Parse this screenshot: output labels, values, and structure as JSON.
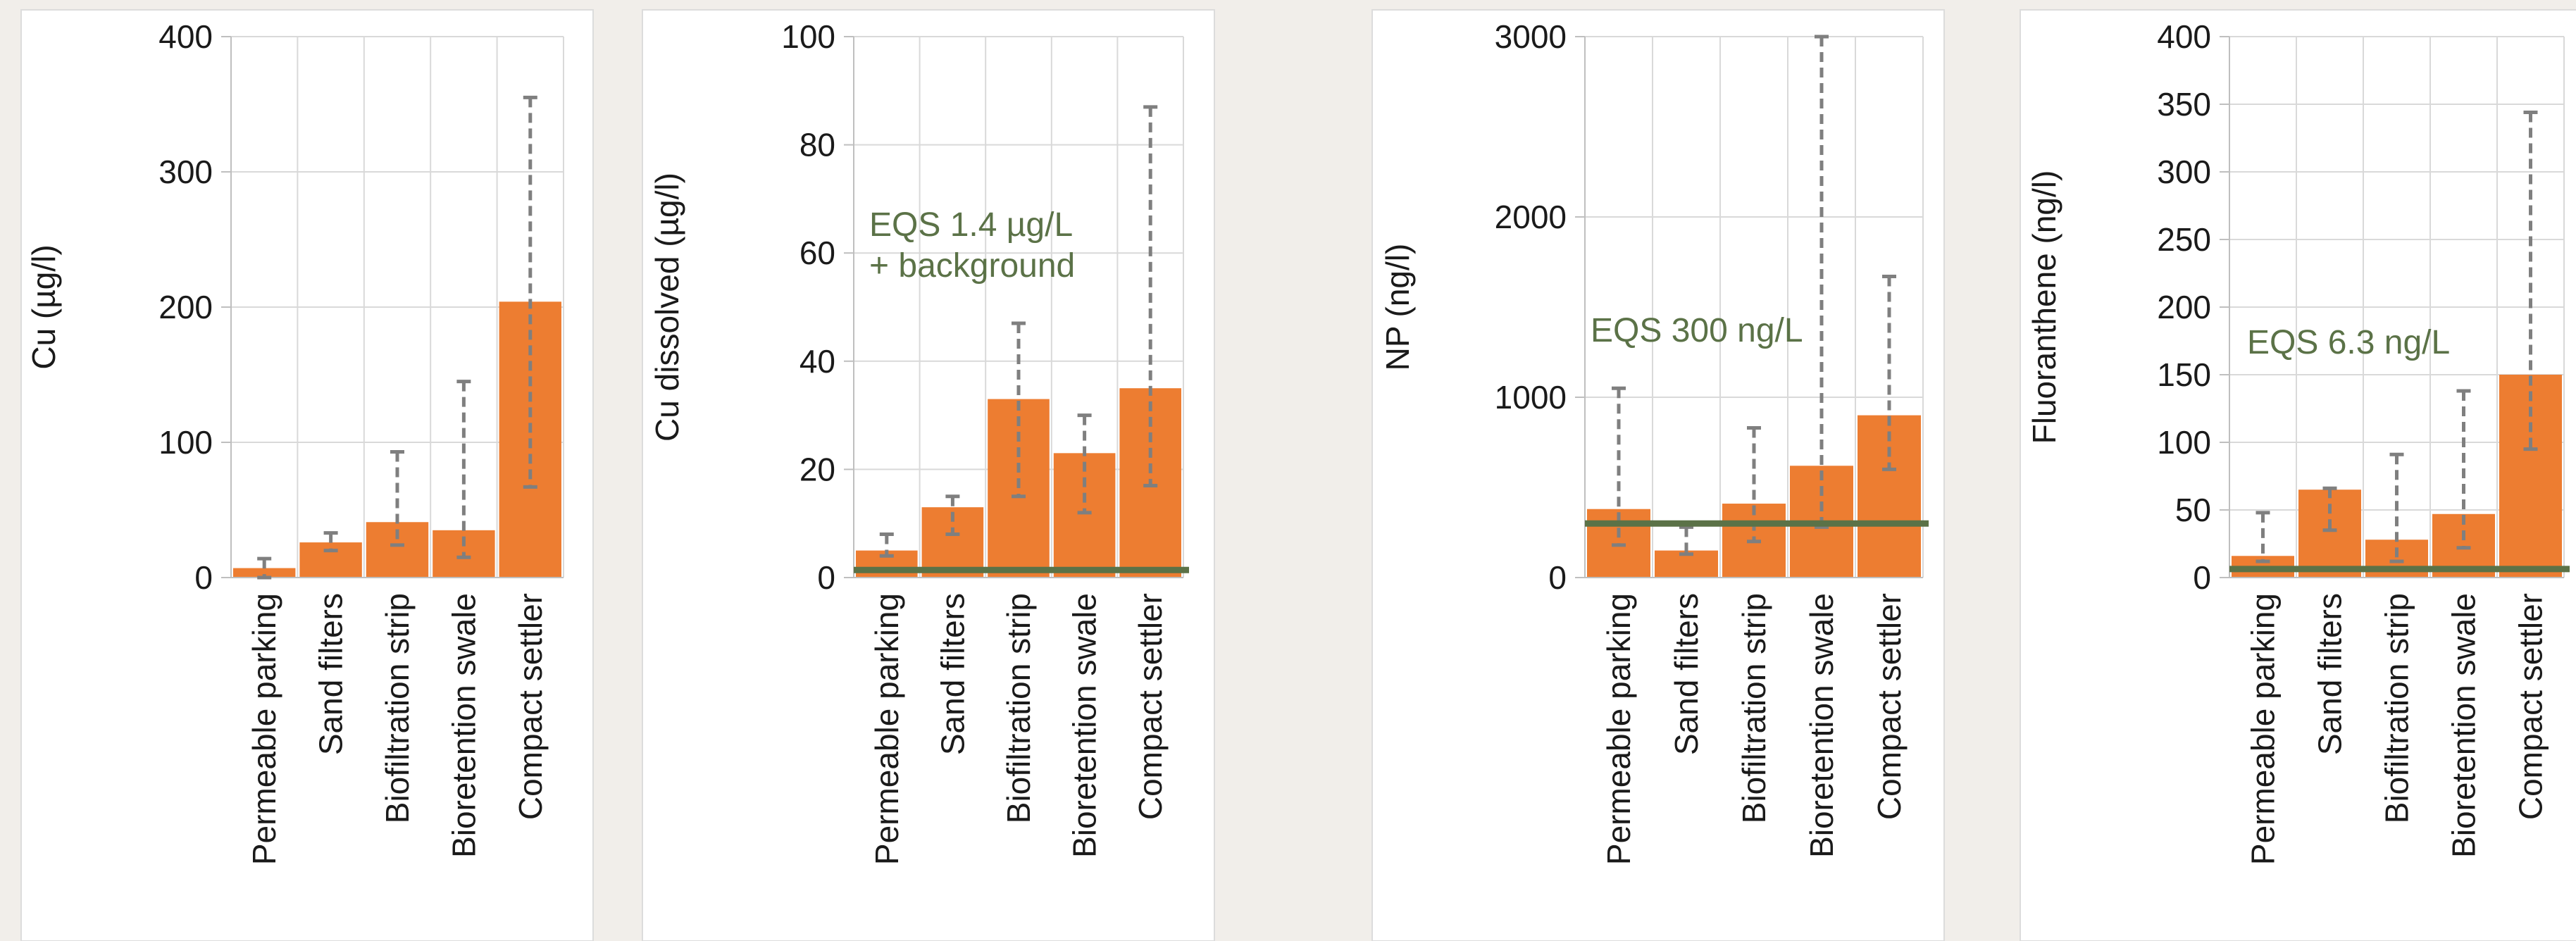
{
  "colors": {
    "bar": "#ed7d31",
    "eqs_line": "#5b7247",
    "error_bar": "#7f7f7f",
    "grid": "#d9d9d9",
    "panel_bg": "#ffffff",
    "page_bg": "#f1eeea"
  },
  "chart_data": [
    {
      "type": "bar",
      "categories": [
        "Permeable parking",
        "Sand filters",
        "Biofiltration strip",
        "Bioretention swale",
        "Compact settler"
      ],
      "values": [
        7,
        26,
        41,
        35,
        204
      ],
      "error_low": [
        0,
        20,
        24,
        15,
        67
      ],
      "error_high": [
        14,
        33,
        93,
        145,
        355
      ],
      "ylabel": "Cu (µg/l)",
      "ylim": [
        0,
        400
      ],
      "yticks": [
        0,
        100,
        200,
        300,
        400
      ],
      "grid": true
    },
    {
      "type": "bar",
      "categories": [
        "Permeable parking",
        "Sand filters",
        "Biofiltration strip",
        "Bioretention swale",
        "Compact settler"
      ],
      "values": [
        5,
        13,
        33,
        23,
        35
      ],
      "error_low": [
        4,
        8,
        15,
        12,
        17
      ],
      "error_high": [
        8,
        15,
        47,
        30,
        87
      ],
      "ylabel": "Cu dissolved  (µg/l)",
      "ylim": [
        0,
        100
      ],
      "yticks": [
        0,
        20,
        40,
        60,
        80,
        100
      ],
      "threshold": 1.4,
      "threshold_label": [
        "EQS 1.4 µg/L",
        "+ background"
      ],
      "grid": true
    },
    {
      "type": "bar",
      "categories": [
        "Permeable parking",
        "Sand filters",
        "Biofiltration strip",
        "Bioretention swale",
        "Compact settler"
      ],
      "values": [
        380,
        150,
        410,
        620,
        900
      ],
      "error_low": [
        180,
        130,
        200,
        280,
        600
      ],
      "error_high": [
        1050,
        280,
        830,
        3000,
        1670
      ],
      "ylabel": "NP (ng/l)",
      "ylim": [
        0,
        3000
      ],
      "yticks": [
        0,
        1000,
        2000,
        3000
      ],
      "threshold": 300,
      "threshold_label": [
        "EQS 300 ng/L"
      ],
      "grid": true
    },
    {
      "type": "bar",
      "categories": [
        "Permeable parking",
        "Sand filters",
        "Biofiltration strip",
        "Bioretention swale",
        "Compact settler"
      ],
      "values": [
        16,
        65,
        28,
        47,
        150
      ],
      "error_low": [
        12,
        35,
        12,
        22,
        95
      ],
      "error_high": [
        48,
        66,
        91,
        138,
        344
      ],
      "ylabel": "Fluoranthene (ng/l)",
      "ylim": [
        0,
        400
      ],
      "yticks": [
        0,
        50,
        100,
        150,
        200,
        250,
        300,
        350,
        400
      ],
      "threshold": 6.3,
      "threshold_label": [
        "EQS 6.3 ng/L"
      ],
      "grid": true
    }
  ]
}
